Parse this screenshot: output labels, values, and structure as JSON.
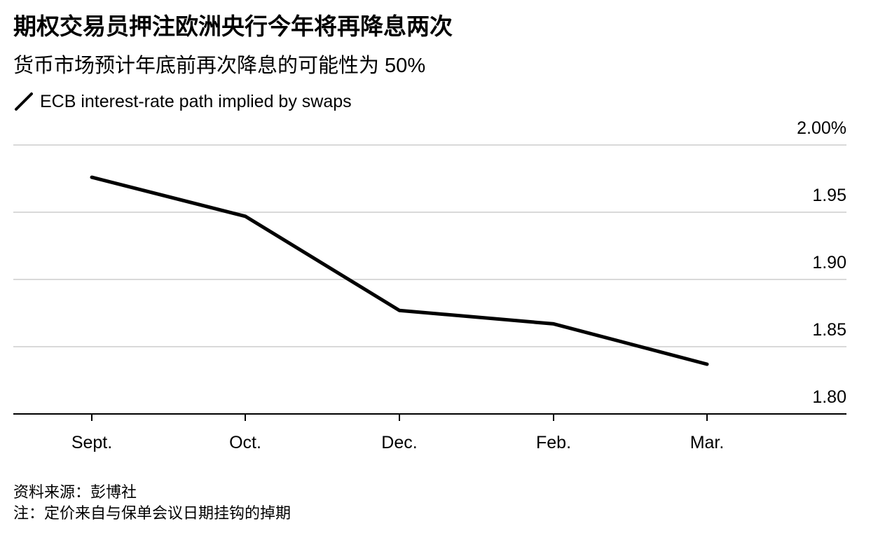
{
  "title": "期权交易员押注欧洲央行今年将再降息两次",
  "subtitle": "货币市场预计年底前再次降息的可能性为 50%",
  "legend": {
    "label": "ECB interest-rate path implied by swaps"
  },
  "footer": {
    "source": "资料来源：彭博社",
    "note": "注：定价来自与保单会议日期挂钩的掉期"
  },
  "colors": {
    "line": "#000000",
    "grid": "#d9d9d9",
    "axis": "#000000",
    "text": "#000000"
  },
  "chart_data": {
    "type": "line",
    "categories": [
      "Sept.",
      "Oct.",
      "Dec.",
      "Feb.",
      "Mar."
    ],
    "series": [
      {
        "name": "ECB interest-rate path implied by swaps",
        "values": [
          1.976,
          1.947,
          1.877,
          1.867,
          1.837
        ]
      }
    ],
    "ylim": [
      1.8,
      2.0
    ],
    "yticks": [
      {
        "value": 2.0,
        "label": "2.00%"
      },
      {
        "value": 1.95,
        "label": "1.95"
      },
      {
        "value": 1.9,
        "label": "1.90"
      },
      {
        "value": 1.85,
        "label": "1.85"
      },
      {
        "value": 1.8,
        "label": "1.80"
      }
    ],
    "grid": true,
    "y_axis_side": "right",
    "xlabel": "",
    "ylabel": ""
  }
}
